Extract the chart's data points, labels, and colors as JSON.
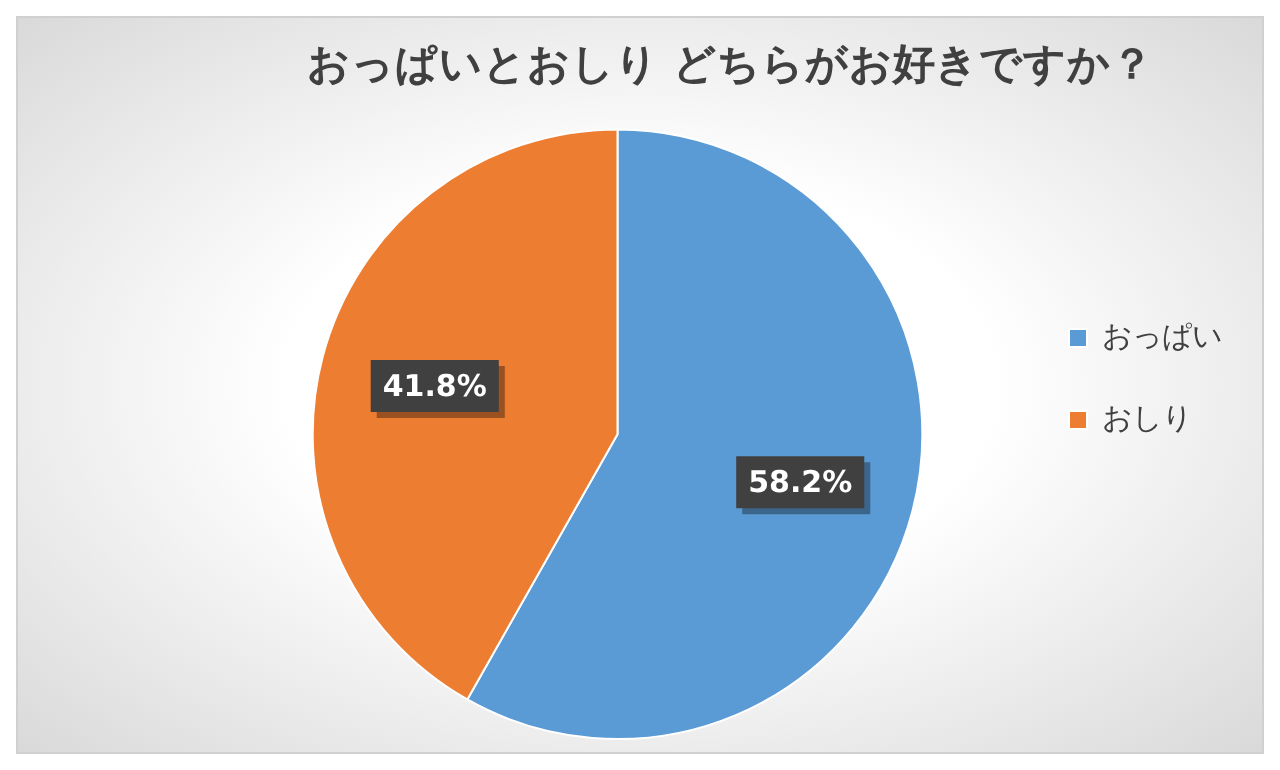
{
  "chart_data": {
    "type": "pie",
    "title": "おっぱいとおしり どちらがお好きですか？",
    "categories": [
      "おっぱい",
      "おしり"
    ],
    "values": [
      58.2,
      41.8
    ],
    "colors": [
      "#5b9bd5",
      "#ed7d31"
    ],
    "value_labels": [
      "58.2%",
      "41.8%"
    ],
    "legend": "right"
  }
}
